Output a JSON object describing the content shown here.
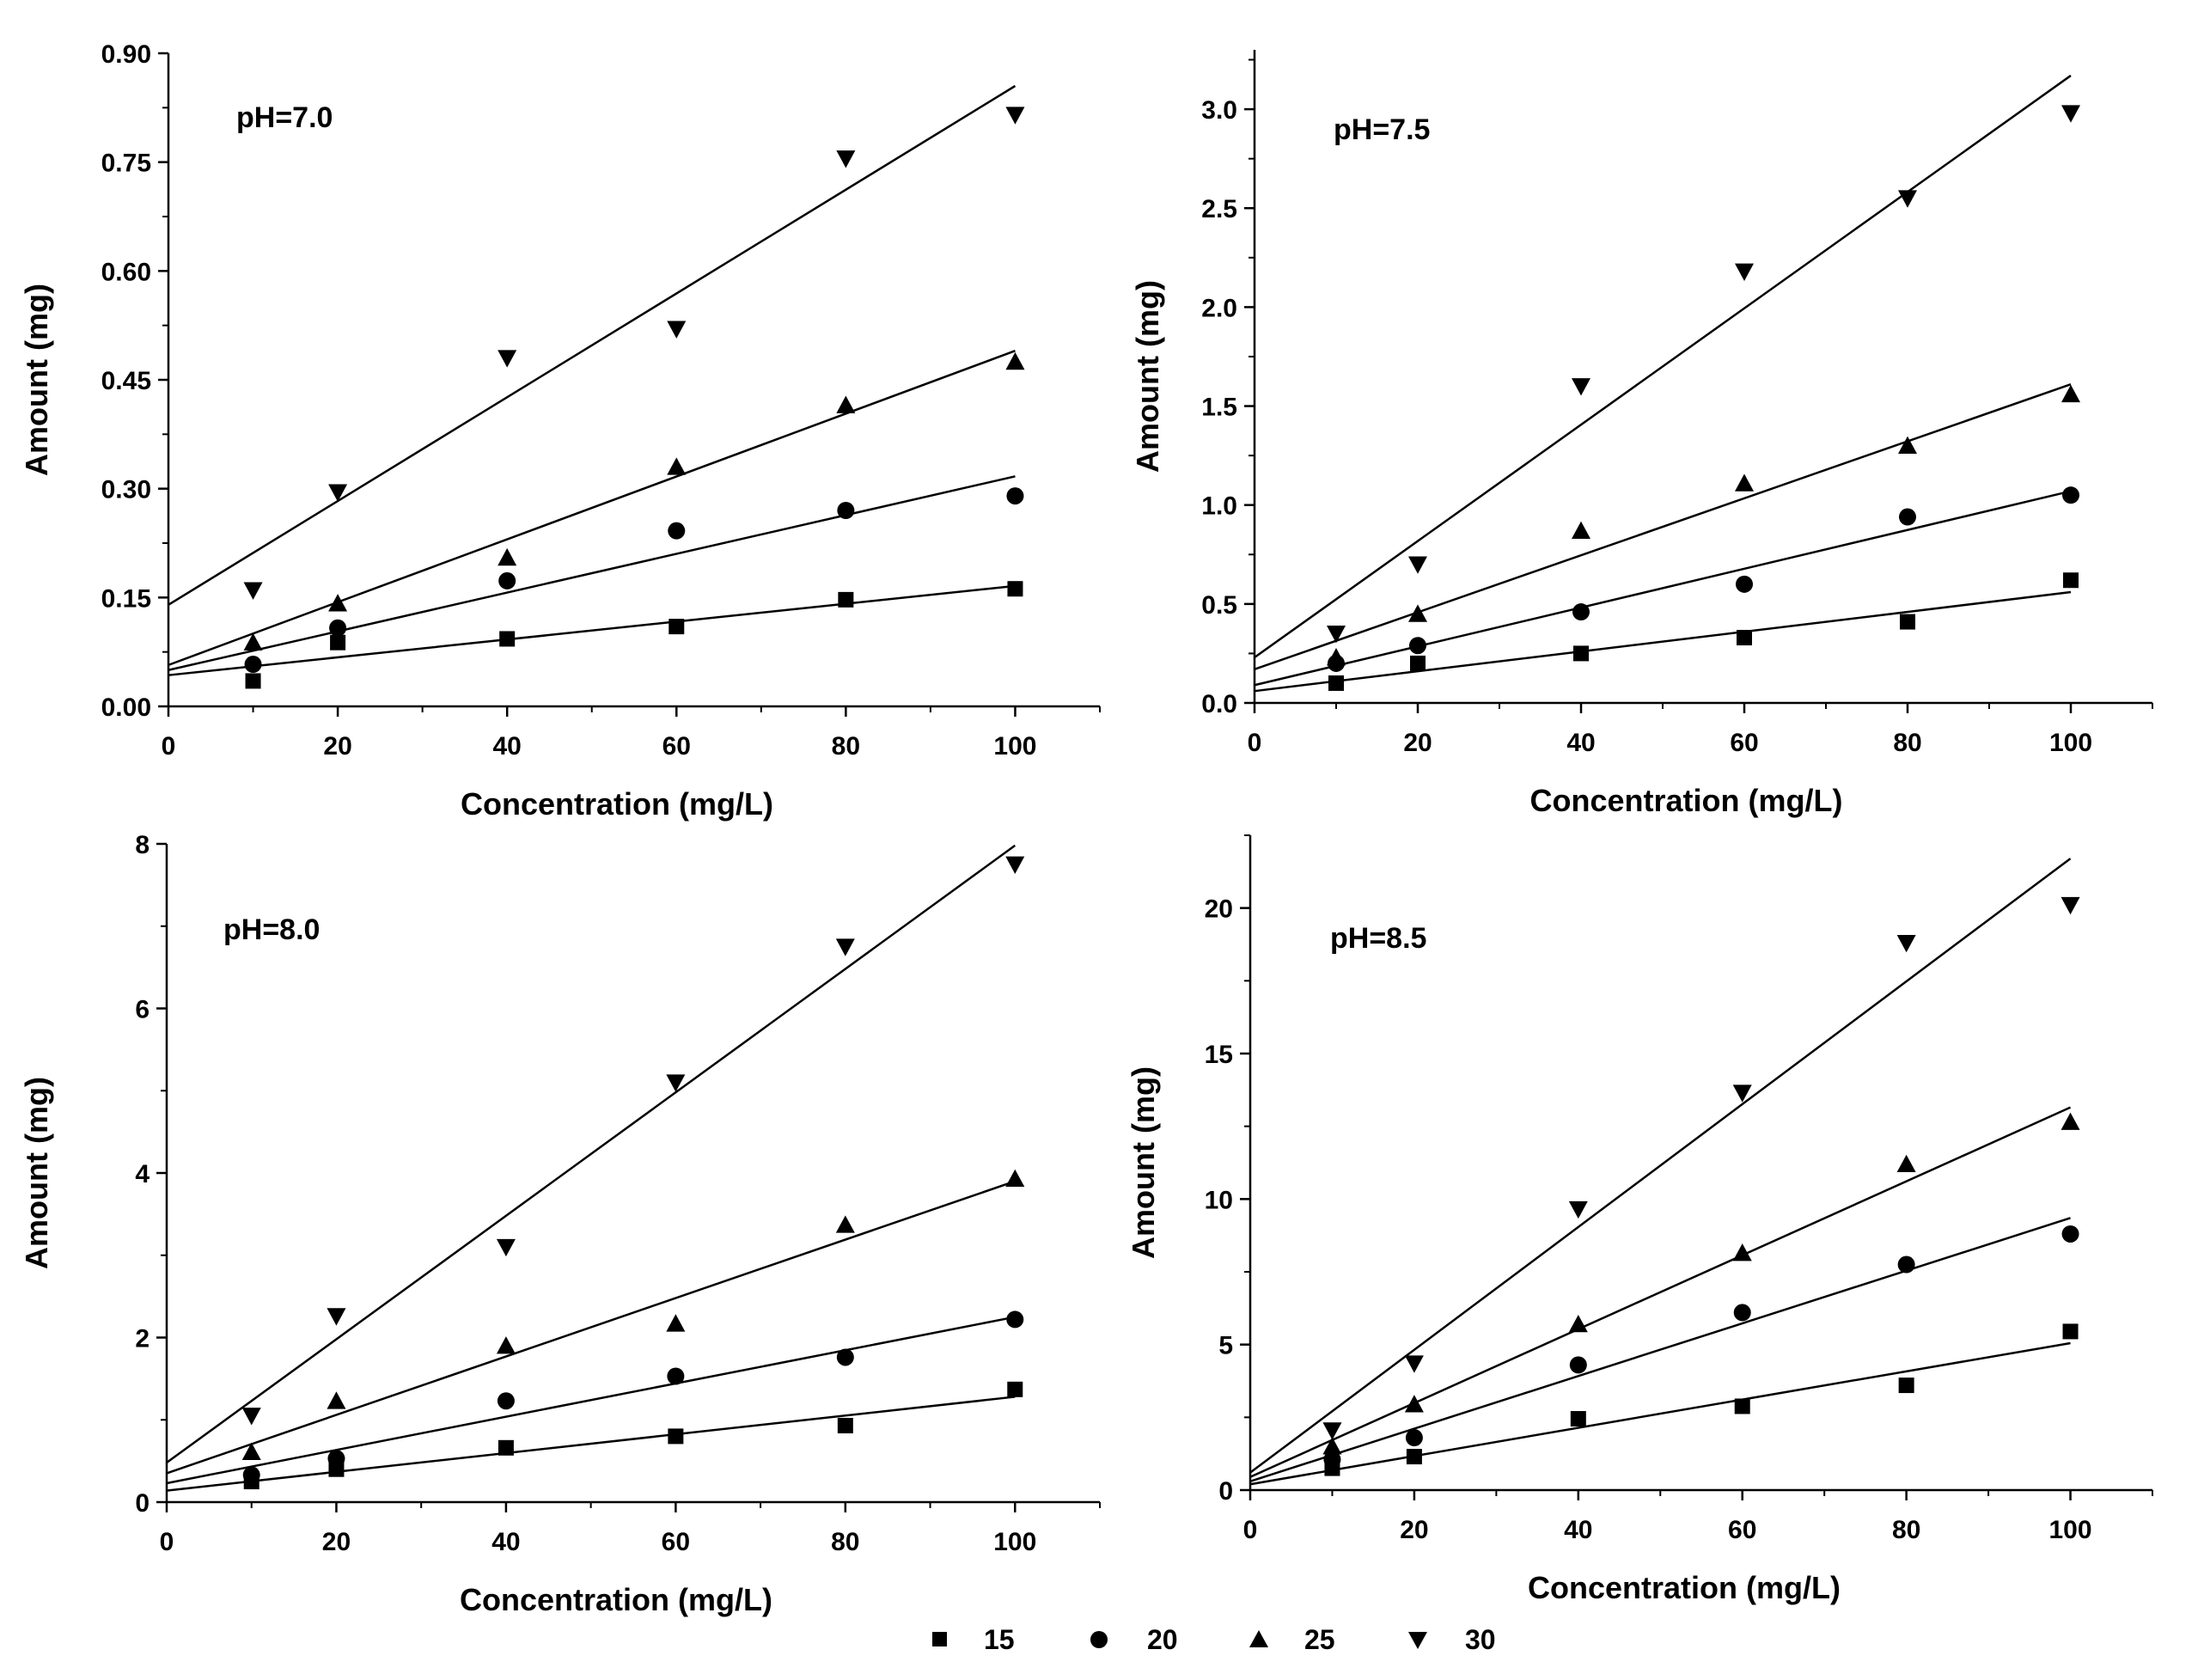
{
  "legend": [
    {
      "label": "15",
      "marker": "square"
    },
    {
      "label": "20",
      "marker": "circle"
    },
    {
      "label": "25",
      "marker": "triangle-up"
    },
    {
      "label": "30",
      "marker": "triangle-down"
    }
  ],
  "chart_data": [
    {
      "type": "scatter",
      "title": "pH=7.0",
      "xlabel": "Concentration (mg/L)",
      "ylabel": "Amount (mg)",
      "xlim": [
        0,
        110
      ],
      "ylim": [
        0,
        0.9
      ],
      "xticks": [
        0,
        20,
        40,
        60,
        80,
        100
      ],
      "xtick_labels": [
        "0",
        "20",
        "40",
        "60",
        "80",
        "100"
      ],
      "yticks": [
        0,
        0.15,
        0.3,
        0.45,
        0.6,
        0.75,
        0.9
      ],
      "ytick_labels": [
        "0.00",
        "0.15",
        "0.30",
        "0.45",
        "0.60",
        "0.75",
        "0.90"
      ],
      "series": [
        {
          "name": "15",
          "marker": "square",
          "x": [
            10,
            20,
            40,
            60,
            80,
            100
          ],
          "y": [
            0.035,
            0.088,
            0.093,
            0.11,
            0.147,
            0.162
          ],
          "fit": [
            0.043,
            0.166
          ]
        },
        {
          "name": "20",
          "marker": "circle",
          "x": [
            10,
            20,
            40,
            60,
            80,
            100
          ],
          "y": [
            0.058,
            0.108,
            0.173,
            0.242,
            0.27,
            0.29
          ],
          "fit": [
            0.05,
            0.317
          ]
        },
        {
          "name": "25",
          "marker": "triangle-up",
          "x": [
            10,
            20,
            40,
            60,
            80,
            100
          ],
          "y": [
            0.088,
            0.142,
            0.205,
            0.33,
            0.415,
            0.475
          ],
          "fit": [
            0.057,
            0.49
          ]
        },
        {
          "name": "30",
          "marker": "triangle-down",
          "x": [
            10,
            20,
            40,
            60,
            80,
            100
          ],
          "y": [
            0.16,
            0.295,
            0.48,
            0.52,
            0.755,
            0.815
          ],
          "fit": [
            0.14,
            0.855
          ]
        }
      ]
    },
    {
      "type": "scatter",
      "title": "pH=7.5",
      "xlabel": "Concentration (mg/L)",
      "ylabel": "Amount (mg)",
      "xlim": [
        0,
        110
      ],
      "ylim": [
        0,
        3.3
      ],
      "xticks": [
        0,
        20,
        40,
        60,
        80,
        100
      ],
      "xtick_labels": [
        "0",
        "20",
        "40",
        "60",
        "80",
        "100"
      ],
      "yticks": [
        0,
        0.5,
        1.0,
        1.5,
        2.0,
        2.5,
        3.0
      ],
      "ytick_labels": [
        "0.0",
        "0.5",
        "1.0",
        "1.5",
        "2.0",
        "2.5",
        "3.0"
      ],
      "series": [
        {
          "name": "15",
          "marker": "square",
          "x": [
            10,
            20,
            40,
            60,
            80,
            100
          ],
          "y": [
            0.1,
            0.2,
            0.25,
            0.33,
            0.41,
            0.62
          ],
          "fit": [
            0.06,
            0.56
          ]
        },
        {
          "name": "20",
          "marker": "circle",
          "x": [
            10,
            20,
            40,
            60,
            80,
            100
          ],
          "y": [
            0.2,
            0.29,
            0.46,
            0.6,
            0.94,
            1.05
          ],
          "fit": [
            0.09,
            1.07
          ]
        },
        {
          "name": "25",
          "marker": "triangle-up",
          "x": [
            10,
            20,
            40,
            60,
            80,
            100
          ],
          "y": [
            0.23,
            0.45,
            0.87,
            1.11,
            1.3,
            1.56
          ],
          "fit": [
            0.17,
            1.61
          ]
        },
        {
          "name": "30",
          "marker": "triangle-down",
          "x": [
            10,
            20,
            40,
            60,
            80,
            100
          ],
          "y": [
            0.35,
            0.7,
            1.6,
            2.18,
            2.55,
            2.98
          ],
          "fit": [
            0.23,
            3.17
          ]
        }
      ]
    },
    {
      "type": "scatter",
      "title": "pH=8.0",
      "xlabel": "Concentration (mg/L)",
      "ylabel": "Amount (mg)",
      "xlim": [
        0,
        110
      ],
      "ylim": [
        0,
        8
      ],
      "xticks": [
        0,
        20,
        40,
        60,
        80,
        100
      ],
      "xtick_labels": [
        "0",
        "20",
        "40",
        "60",
        "80",
        "100"
      ],
      "yticks": [
        0,
        2,
        4,
        6,
        8
      ],
      "ytick_labels": [
        "0",
        "2",
        "4",
        "6",
        "8"
      ],
      "series": [
        {
          "name": "15",
          "marker": "square",
          "x": [
            10,
            20,
            40,
            60,
            80,
            100
          ],
          "y": [
            0.25,
            0.4,
            0.66,
            0.8,
            0.93,
            1.37
          ],
          "fit": [
            0.14,
            1.28
          ]
        },
        {
          "name": "20",
          "marker": "circle",
          "x": [
            10,
            20,
            40,
            60,
            80,
            100
          ],
          "y": [
            0.33,
            0.53,
            1.23,
            1.53,
            1.76,
            2.22
          ],
          "fit": [
            0.23,
            2.25
          ]
        },
        {
          "name": "25",
          "marker": "triangle-up",
          "x": [
            10,
            20,
            40,
            60,
            80,
            100
          ],
          "y": [
            0.61,
            1.23,
            1.9,
            2.17,
            3.37,
            3.93
          ],
          "fit": [
            0.35,
            3.9
          ]
        },
        {
          "name": "30",
          "marker": "triangle-down",
          "x": [
            10,
            20,
            40,
            60,
            80,
            100
          ],
          "y": [
            1.05,
            2.26,
            3.1,
            5.1,
            6.75,
            7.75
          ],
          "fit": [
            0.48,
            7.98
          ]
        }
      ]
    },
    {
      "type": "scatter",
      "title": "pH=8.5",
      "xlabel": "Concentration (mg/L)",
      "ylabel": "Amount (mg)",
      "xlim": [
        0,
        110
      ],
      "ylim": [
        0,
        22.5
      ],
      "xticks": [
        0,
        20,
        40,
        60,
        80,
        100
      ],
      "xtick_labels": [
        "0",
        "20",
        "40",
        "60",
        "80",
        "100"
      ],
      "yticks": [
        0,
        5,
        10,
        15,
        20
      ],
      "ytick_labels": [
        "0",
        "5",
        "10",
        "15",
        "20"
      ],
      "series": [
        {
          "name": "15",
          "marker": "square",
          "x": [
            10,
            20,
            40,
            60,
            80,
            100
          ],
          "y": [
            0.75,
            1.15,
            2.45,
            2.88,
            3.6,
            5.45
          ],
          "fit": [
            0.2,
            5.05
          ]
        },
        {
          "name": "20",
          "marker": "circle",
          "x": [
            10,
            20,
            40,
            60,
            80,
            100
          ],
          "y": [
            1.05,
            1.8,
            4.3,
            6.1,
            7.75,
            8.8
          ],
          "fit": [
            0.3,
            9.35
          ]
        },
        {
          "name": "25",
          "marker": "triangle-up",
          "x": [
            10,
            20,
            40,
            60,
            80,
            100
          ],
          "y": [
            1.5,
            2.95,
            5.7,
            8.15,
            11.2,
            12.65
          ],
          "fit": [
            0.45,
            13.15
          ]
        },
        {
          "name": "30",
          "marker": "triangle-down",
          "x": [
            10,
            20,
            40,
            60,
            80,
            100
          ],
          "y": [
            2.05,
            4.35,
            9.65,
            13.65,
            18.8,
            20.1
          ],
          "fit": [
            0.6,
            21.7
          ]
        }
      ]
    }
  ]
}
